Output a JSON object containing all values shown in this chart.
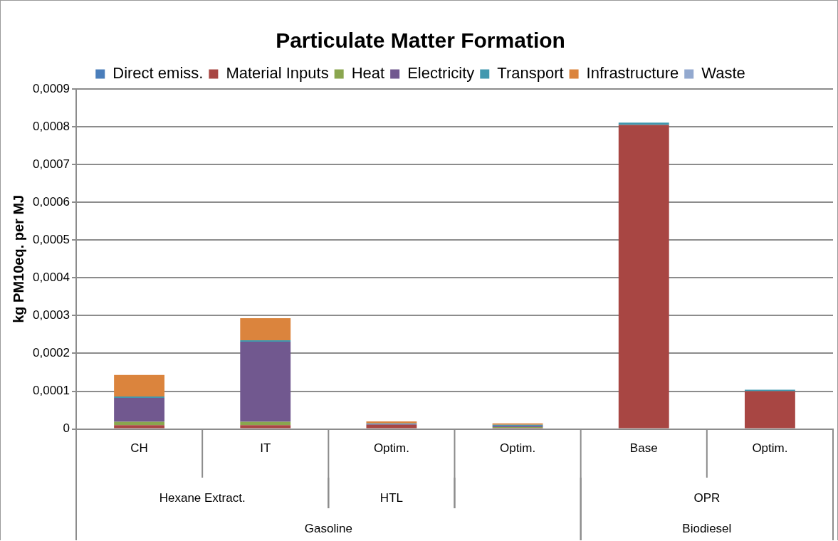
{
  "chart_data": {
    "type": "bar",
    "title": "Particulate Matter Formation",
    "ylabel": "kg PM10eq. per MJ",
    "stacked": true,
    "legend": "top",
    "grid": "y",
    "categories": [
      "CH",
      "IT",
      "Optim.",
      "Optim.",
      "Base",
      "Optim."
    ],
    "series": [
      {
        "name": "Direct emiss.",
        "color": "#4a7ebb",
        "values": [
          0,
          0,
          0,
          0,
          0,
          0
        ]
      },
      {
        "name": "Material Inputs",
        "color": "#a84643",
        "values": [
          1e-05,
          1e-05,
          1.1e-05,
          3e-06,
          0.000805,
          0.0001
        ]
      },
      {
        "name": "Heat",
        "color": "#8aa64f",
        "values": [
          9e-06,
          9e-06,
          0,
          2e-06,
          0,
          0
        ]
      },
      {
        "name": "Electricity",
        "color": "#71588f",
        "values": [
          6.3e-05,
          0.000212,
          2e-06,
          3e-06,
          0,
          0
        ]
      },
      {
        "name": "Transport",
        "color": "#4198af",
        "values": [
          4e-06,
          4e-06,
          2e-06,
          3e-06,
          6e-06,
          4e-06
        ]
      },
      {
        "name": "Infrastructure",
        "color": "#db843d",
        "values": [
          5.7e-05,
          5.8e-05,
          5e-06,
          4e-06,
          0,
          0
        ]
      },
      {
        "name": "Waste",
        "color": "#93a9cf",
        "values": [
          0,
          0,
          0,
          0,
          0,
          0
        ]
      }
    ],
    "ylim": [
      0,
      0.0009
    ],
    "yticks": [
      {
        "value": 0,
        "label": "0"
      },
      {
        "value": 0.0001,
        "label": "0,0001"
      },
      {
        "value": 0.0002,
        "label": "0,0002"
      },
      {
        "value": 0.0003,
        "label": "0,0003"
      },
      {
        "value": 0.0004,
        "label": "0,0004"
      },
      {
        "value": 0.0005,
        "label": "0,0005"
      },
      {
        "value": 0.0006,
        "label": "0,0006"
      },
      {
        "value": 0.0007,
        "label": "0,0007"
      },
      {
        "value": 0.0008,
        "label": "0,0008"
      },
      {
        "value": 0.0009,
        "label": "0,0009"
      }
    ],
    "annotations": [
      "Hexane Extract.",
      "HTL",
      "OPR",
      "Gasoline",
      "Biodiesel"
    ]
  }
}
